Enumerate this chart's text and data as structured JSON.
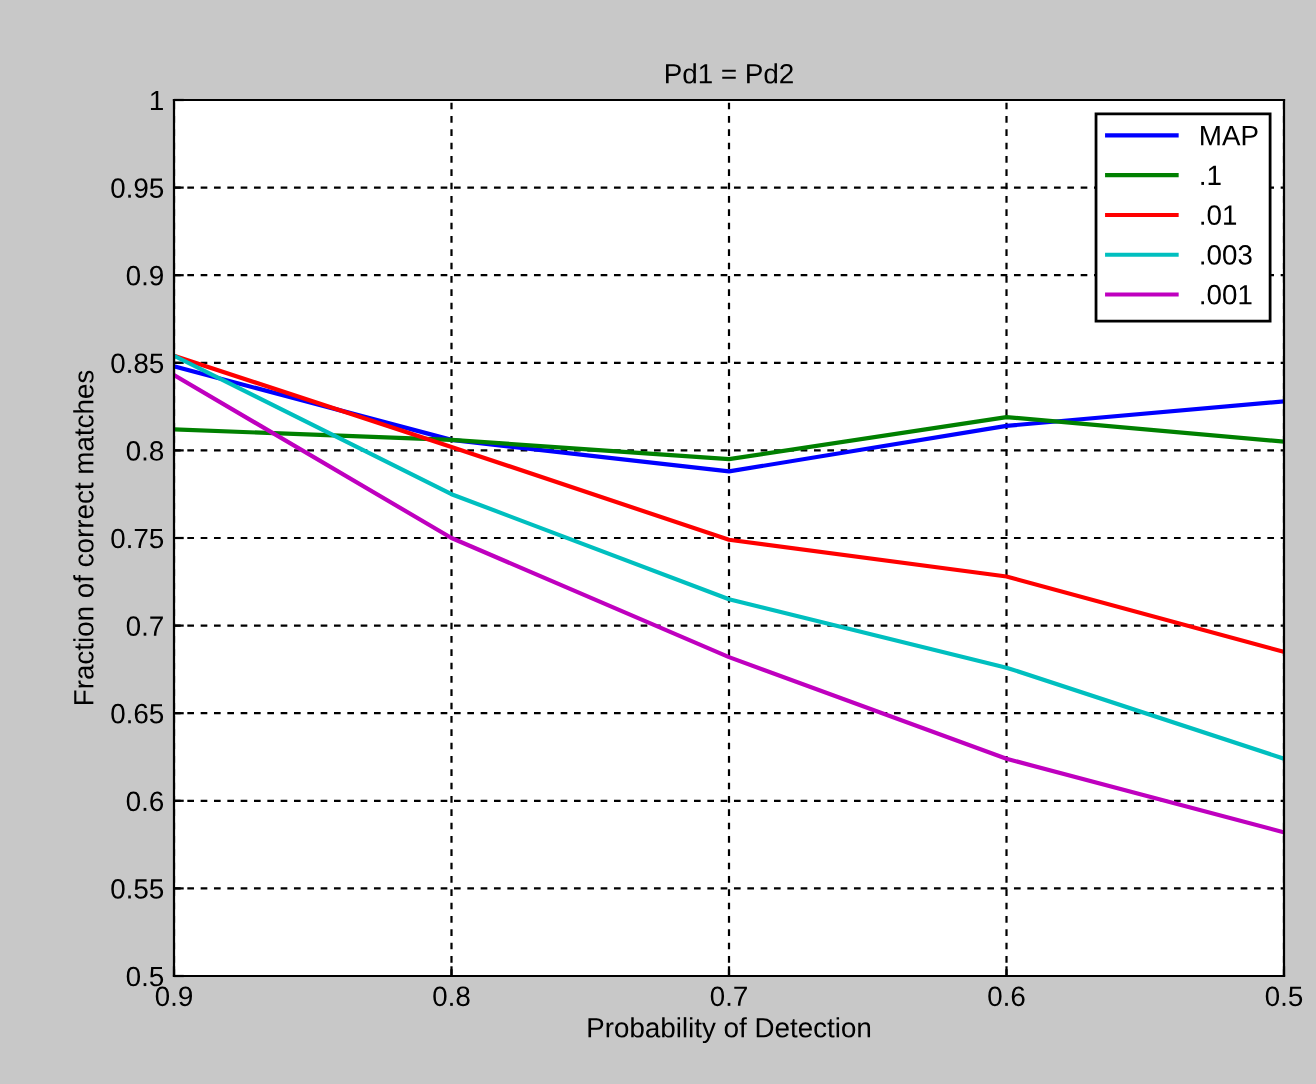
{
  "chart_data": {
    "type": "line",
    "title": "Pd1 = Pd2",
    "xlabel": "Probability of Detection",
    "ylabel": "Fraction of correct matches",
    "x": [
      0.9,
      0.8,
      0.7,
      0.6,
      0.5
    ],
    "series": [
      {
        "name": "MAP",
        "color": "#0000ff",
        "values": [
          0.848,
          0.806,
          0.788,
          0.814,
          0.828
        ]
      },
      {
        "name": ".1",
        "color": "#008000",
        "values": [
          0.812,
          0.806,
          0.795,
          0.819,
          0.805
        ]
      },
      {
        "name": ".01",
        "color": "#ff0000",
        "values": [
          0.854,
          0.802,
          0.749,
          0.728,
          0.685
        ]
      },
      {
        "name": ".003",
        "color": "#00bfbf",
        "values": [
          0.854,
          0.775,
          0.715,
          0.676,
          0.624
        ]
      },
      {
        "name": ".001",
        "color": "#bf00bf",
        "values": [
          0.843,
          0.75,
          0.682,
          0.624,
          0.582
        ]
      }
    ],
    "xlim": [
      0.9,
      0.5
    ],
    "xticks": [
      0.9,
      0.8,
      0.7,
      0.6,
      0.5
    ],
    "ylim": [
      0.5,
      1
    ],
    "yticks": [
      0.5,
      0.55,
      0.6,
      0.65,
      0.7,
      0.75,
      0.8,
      0.85,
      0.9,
      0.95,
      1
    ],
    "grid": true,
    "legend": "top right",
    "marker": "none",
    "line_style": "solid"
  }
}
